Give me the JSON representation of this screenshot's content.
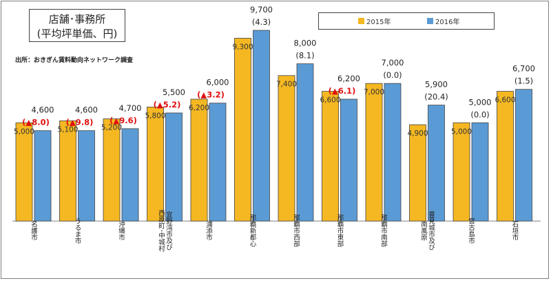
{
  "title": {
    "line1": "店舗･事務所",
    "line2": "(平均坪単価、円)"
  },
  "source": "出所：おきぎん賃料動向ネットワーク調査",
  "colors": {
    "s2015": "#F5B822",
    "s2016": "#5B9BD5",
    "negative": "#E01010",
    "text": "#222222"
  },
  "chart_data": {
    "type": "bar",
    "title": "店舗･事務所",
    "subtitle": "(平均坪単価、円)",
    "ylim": [
      0,
      10000
    ],
    "grid": false,
    "legend": "top-right",
    "categories": [
      [
        "名護市"
      ],
      [
        "うるま市"
      ],
      [
        "沖縄市"
      ],
      [
        "宜野湾市及び",
        "西原町･中城村"
      ],
      [
        "浦添市"
      ],
      [
        "那覇新都心"
      ],
      [
        "那覇市西部"
      ],
      [
        "那覇市東部"
      ],
      [
        "那覇市南部"
      ],
      [
        "豊見城市及び",
        "南風原"
      ],
      [
        "宮古島市"
      ],
      [
        "石垣市"
      ]
    ],
    "series": [
      {
        "name": "2015年",
        "values": [
          5000,
          5100,
          5200,
          5800,
          6200,
          9300,
          7400,
          6600,
          7000,
          4900,
          5000,
          6600
        ]
      },
      {
        "name": "2016年",
        "values": [
          4600,
          4600,
          4700,
          5500,
          6000,
          9700,
          8000,
          6200,
          7000,
          5900,
          5000,
          6700
        ]
      }
    ],
    "labels_2015": [
      "5,000",
      "5,100",
      "5,200",
      "5,800",
      "6,200",
      "9,300",
      "7,400",
      "6,600",
      "7,000",
      "4,900",
      "5,000",
      "6,600"
    ],
    "labels_2016": [
      "4,600",
      "4,600",
      "4,700",
      "5,500",
      "6,000",
      "9,700",
      "8,000",
      "6,200",
      "7,000",
      "5,900",
      "5,000",
      "6,700"
    ],
    "change_pct": [
      {
        "text": "(▲8.0)",
        "negative": true
      },
      {
        "text": "(▲9.8)",
        "negative": true
      },
      {
        "text": "(▲9.6)",
        "negative": true
      },
      {
        "text": "(▲5.2)",
        "negative": true
      },
      {
        "text": "(▲3.2)",
        "negative": true
      },
      {
        "text": "(4.3)",
        "negative": false
      },
      {
        "text": "(8.1)",
        "negative": false
      },
      {
        "text": "(▲6.1)",
        "negative": true
      },
      {
        "text": "(0.0)",
        "negative": false
      },
      {
        "text": "(20.4)",
        "negative": false
      },
      {
        "text": "(0.0)",
        "negative": false
      },
      {
        "text": "(1.5)",
        "negative": false
      }
    ]
  }
}
